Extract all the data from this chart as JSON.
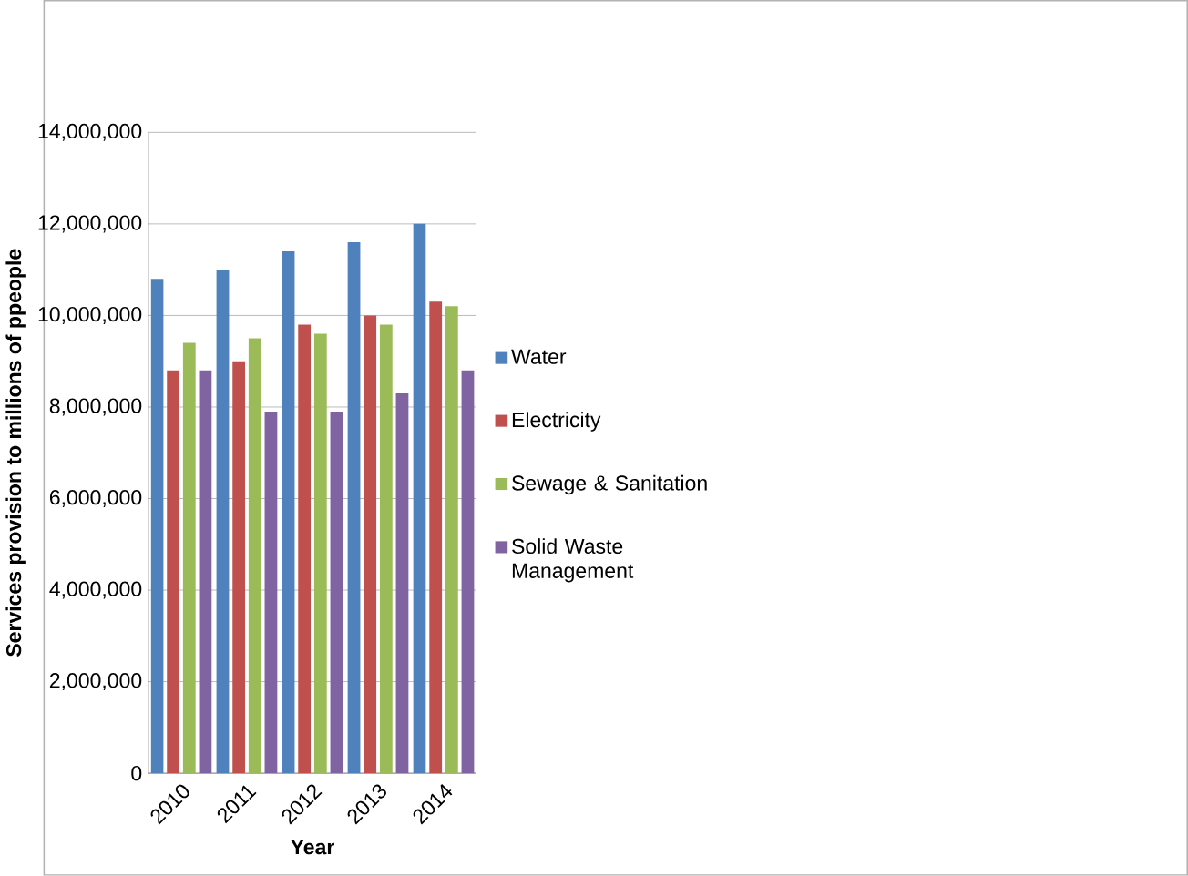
{
  "chart_data": {
    "type": "bar",
    "xlabel": "Year",
    "ylabel": "Services provision to millions of ppeople",
    "categories": [
      "2010",
      "2011",
      "2012",
      "2013",
      "2014"
    ],
    "series": [
      {
        "name": "Water",
        "color": "#4f81bd",
        "values": [
          10800000,
          11000000,
          11400000,
          11600000,
          12000000
        ]
      },
      {
        "name": "Electricity",
        "color": "#c0504d",
        "values": [
          8800000,
          9000000,
          9800000,
          10000000,
          10300000
        ]
      },
      {
        "name": "Sewage & Sanitation",
        "color": "#9bbb59",
        "values": [
          9400000,
          9500000,
          9600000,
          9800000,
          10200000
        ]
      },
      {
        "name": "Solid Waste Management",
        "color": "#8064a2",
        "values": [
          8800000,
          7900000,
          7900000,
          8300000,
          8800000
        ]
      }
    ],
    "ylim": [
      0,
      14000000
    ],
    "yticks": [
      {
        "value": 0,
        "label": "0"
      },
      {
        "value": 2000000,
        "label": "2,000,000"
      },
      {
        "value": 4000000,
        "label": "4,000,000"
      },
      {
        "value": 6000000,
        "label": "6,000,000"
      },
      {
        "value": 8000000,
        "label": "8,000,000"
      },
      {
        "value": 10000000,
        "label": "10,000,000"
      },
      {
        "value": 12000000,
        "label": "12,000,000"
      },
      {
        "value": 14000000,
        "label": "14,000,000"
      }
    ],
    "grid": "y",
    "legend": "right"
  }
}
